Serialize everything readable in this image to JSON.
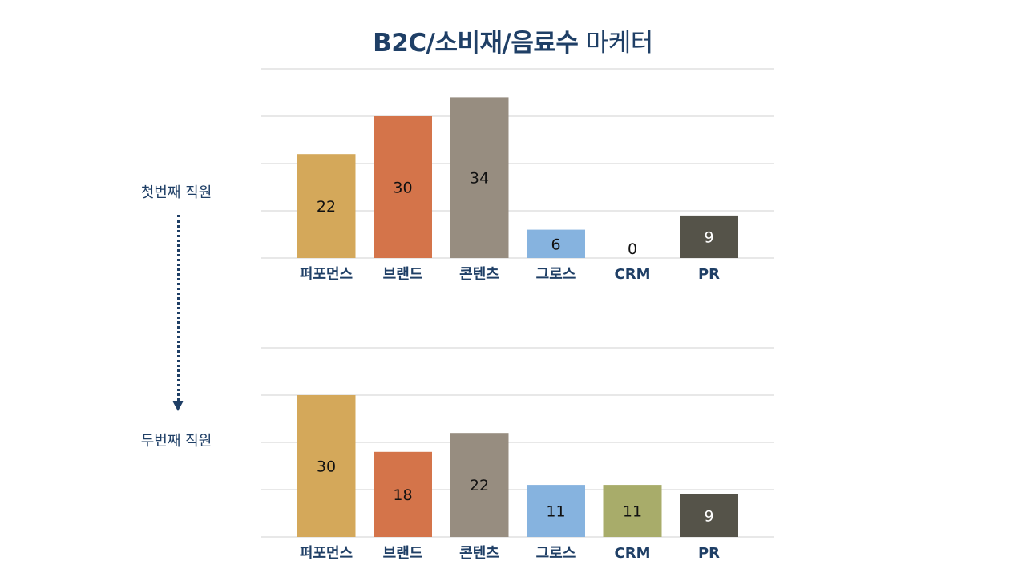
{
  "title": {
    "bold": "B2C/소비재/음료수",
    "light": "마케터"
  },
  "arrow_icon": "dotted-down-arrow-icon",
  "colors": {
    "title": "#1f3f66",
    "grid": "#d0d0d0",
    "bars": [
      "#d4a85a",
      "#d4744a",
      "#978d80",
      "#86b3df",
      "#a8ac6a",
      "#555349"
    ]
  },
  "chart_data": [
    {
      "type": "bar",
      "label": "첫번째 직원",
      "categories": [
        "퍼포먼스",
        "브랜드",
        "콘텐츠",
        "그로스",
        "CRM",
        "PR"
      ],
      "values": [
        22,
        30,
        34,
        6,
        0,
        9
      ],
      "ylim": [
        0,
        40
      ],
      "grid": true
    },
    {
      "type": "bar",
      "label": "두번째 직원",
      "categories": [
        "퍼포먼스",
        "브랜드",
        "콘텐츠",
        "그로스",
        "CRM",
        "PR"
      ],
      "values": [
        30,
        18,
        22,
        11,
        11,
        9
      ],
      "ylim": [
        0,
        40
      ],
      "grid": true
    }
  ]
}
